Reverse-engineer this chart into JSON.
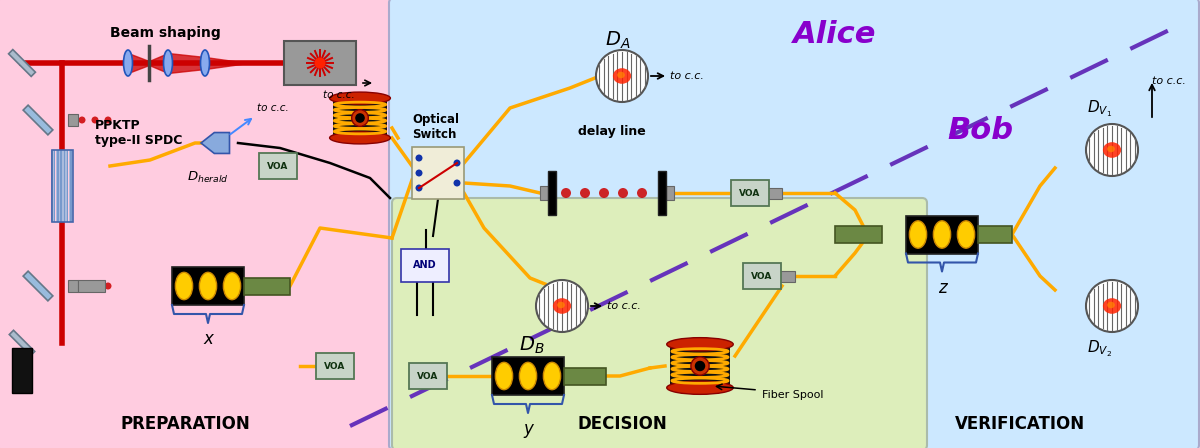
{
  "prep_bg": "#ffcce0",
  "alice_bg": "#cce8ff",
  "decision_bg": "#ddeebb",
  "prep_label": "PREPARATION",
  "decision_label": "DECISION",
  "verif_label": "VERIFICATION",
  "alice_label": "Alice",
  "bob_label": "Bob",
  "laser_color": "#cc0000",
  "fiber_color": "#ffaa00",
  "beam_shaping_text": "Beam shaping",
  "ppktp_text": "PPKTP\ntype-II SPDC",
  "optical_switch_text": "Optical\nSwitch",
  "delay_line_text": "delay line",
  "fiber_spool_text": "Fiber Spool",
  "to_cc_text": "to c.c.",
  "x_label": "x",
  "y_label": "y",
  "z_label": "z",
  "voa_color": "#c8d4c8",
  "voa_border": "#557755",
  "switch_color": "#f0edd8",
  "and_color": "#eeeeff",
  "gray_rod": "#888888"
}
